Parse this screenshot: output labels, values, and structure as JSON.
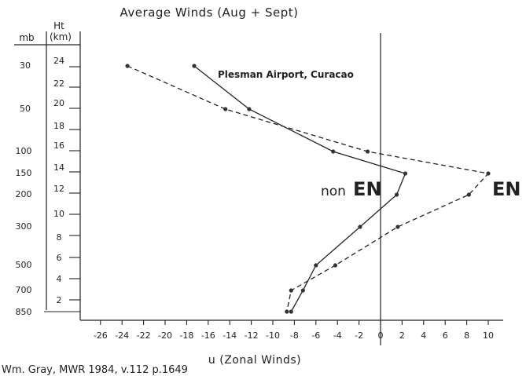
{
  "chart_data": {
    "type": "line",
    "title": "Average Winds (Aug + Sept)",
    "xlabel": "u (Zonal Winds)",
    "pressure_axis_label": "mb",
    "height_axis_label_line1": "Ht",
    "height_axis_label_line2": "(km)",
    "site_label": "Plesman Airport, Curacao",
    "credit": "Wm. Gray, MWR 1984, v.112 p.1649",
    "xlim": [
      -27,
      11
    ],
    "x_ticks": [
      -26,
      -24,
      -22,
      -20,
      -18,
      -16,
      -14,
      -12,
      -10,
      -8,
      -6,
      -4,
      -2,
      0,
      2,
      4,
      6,
      8,
      10
    ],
    "pressure_ticks": [
      "30",
      "50",
      "100",
      "150",
      "200",
      "300",
      "500",
      "700",
      "850"
    ],
    "height_ticks_km": [
      "24",
      "22",
      "20",
      "18",
      "16",
      "14",
      "12",
      "10",
      "8",
      "6",
      "4",
      "2"
    ],
    "grid": false,
    "series": [
      {
        "name": "EN",
        "label_prefix": "",
        "label_main": "EN",
        "style": "dashed",
        "color": "#222222",
        "points": [
          {
            "level": "30",
            "u": -23.5
          },
          {
            "level": "50",
            "u": -14.4
          },
          {
            "level": "100",
            "u": -1.2
          },
          {
            "level": "150",
            "u": 10.0
          },
          {
            "level": "200",
            "u": 8.2
          },
          {
            "level": "300",
            "u": 1.6
          },
          {
            "level": "500",
            "u": -4.2
          },
          {
            "level": "700",
            "u": -8.3
          },
          {
            "level": "850",
            "u": -8.7
          }
        ]
      },
      {
        "name": "non EN",
        "label_prefix": "non",
        "label_main": "EN",
        "style": "solid",
        "color": "#222222",
        "points": [
          {
            "level": "30",
            "u": -17.3
          },
          {
            "level": "50",
            "u": -12.2
          },
          {
            "level": "100",
            "u": -4.4
          },
          {
            "level": "150",
            "u": 2.3
          },
          {
            "level": "200",
            "u": 1.5
          },
          {
            "level": "300",
            "u": -1.9
          },
          {
            "level": "500",
            "u": -6.0
          },
          {
            "level": "700",
            "u": -7.2
          },
          {
            "level": "850",
            "u": -8.3
          }
        ]
      }
    ]
  }
}
